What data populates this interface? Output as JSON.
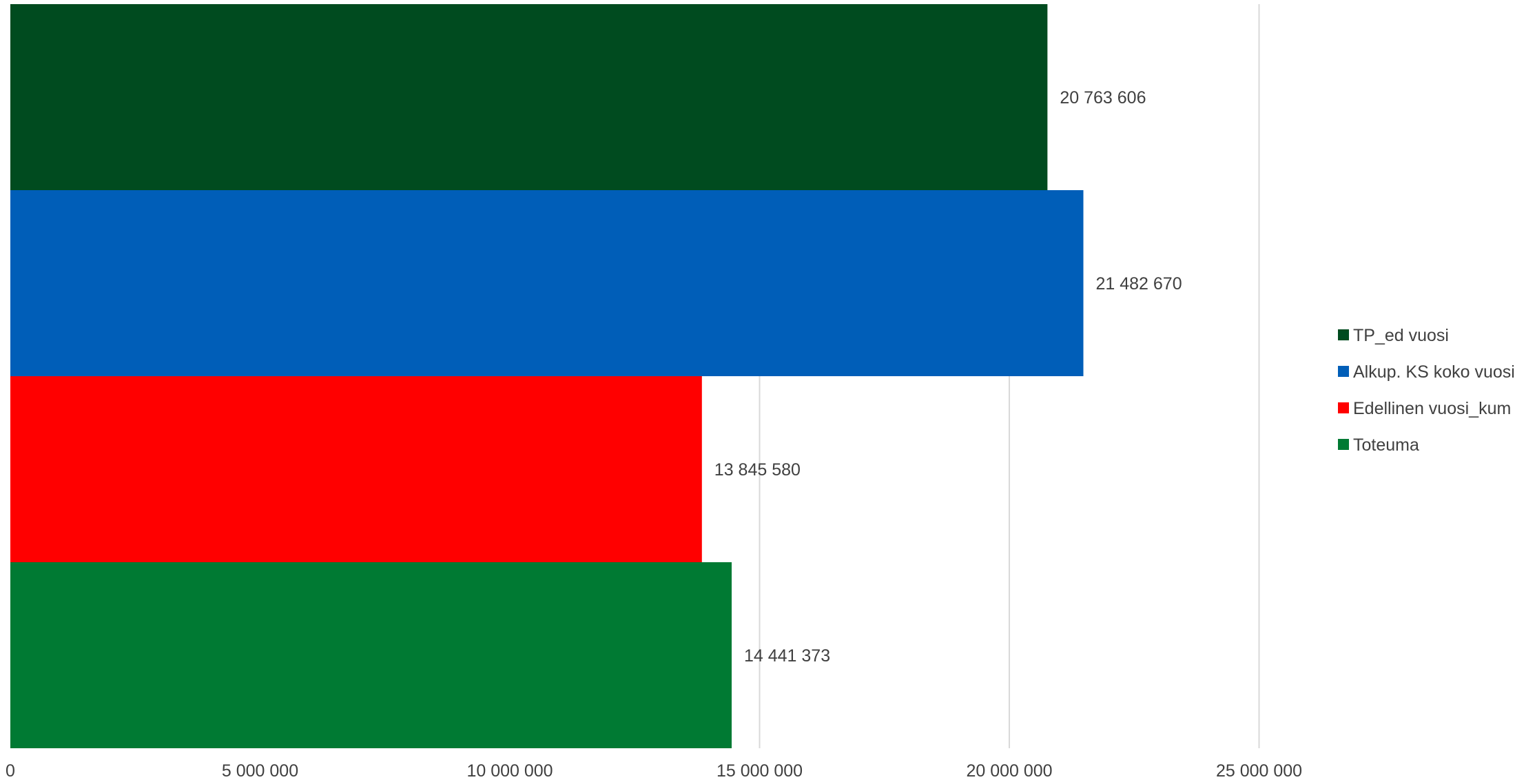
{
  "chart_data": {
    "type": "bar",
    "orientation": "horizontal",
    "title": "",
    "xlabel": "",
    "ylabel": "",
    "xlim": [
      0,
      30000000
    ],
    "x_ticks": [
      0,
      5000000,
      10000000,
      15000000,
      20000000,
      25000000
    ],
    "x_tick_labels": [
      "0",
      "5 000 000",
      "10 000 000",
      "15 000 000",
      "20 000 000",
      "25 000 000"
    ],
    "grid": "vertical",
    "legend_position": "right",
    "series": [
      {
        "name": "TP_ed vuosi",
        "value": 20763606,
        "label": "20 763 606",
        "color": "#004b1f"
      },
      {
        "name": "Alkup. KS koko vuosi",
        "value": 21482670,
        "label": "21 482 670",
        "color": "#005eb8"
      },
      {
        "name": "Edellinen vuosi_kum",
        "value": 13845580,
        "label": "13 845 580",
        "color": "#ff0000"
      },
      {
        "name": "Toteuma",
        "value": 14441373,
        "label": "14 441 373",
        "color": "#007a33"
      }
    ],
    "colors": {
      "gridline": "#d9d9d9",
      "text": "#404040"
    }
  }
}
